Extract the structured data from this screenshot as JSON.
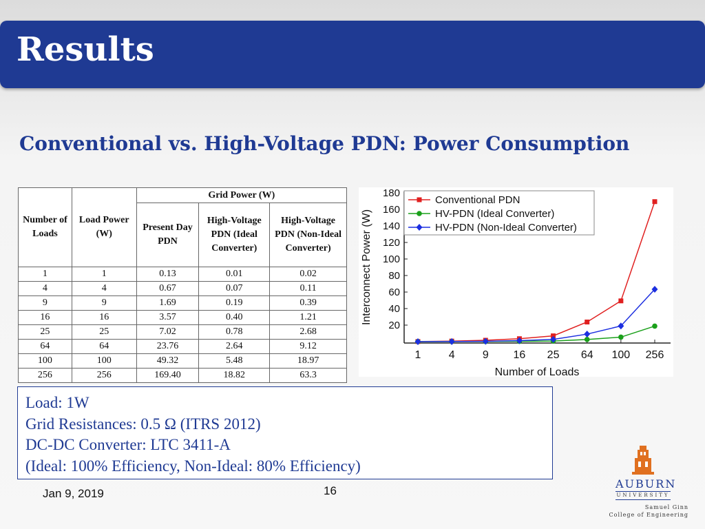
{
  "slide": {
    "title": "Results",
    "subtitle": "Conventional vs. High-Voltage PDN: Power Consumption",
    "date": "Jan 9, 2019",
    "page_number": "16"
  },
  "table": {
    "headers": {
      "number_of_loads": "Number of Loads",
      "load_power": "Load Power (W)",
      "grid_power": "Grid Power (W)",
      "present_day": "Present Day PDN",
      "hv_ideal": "High-Voltage PDN (Ideal Converter)",
      "hv_nonideal": "High-Voltage PDN (Non-Ideal Converter)"
    },
    "rows": [
      [
        "1",
        "1",
        "0.13",
        "0.01",
        "0.02"
      ],
      [
        "4",
        "4",
        "0.67",
        "0.07",
        "0.11"
      ],
      [
        "9",
        "9",
        "1.69",
        "0.19",
        "0.39"
      ],
      [
        "16",
        "16",
        "3.57",
        "0.40",
        "1.21"
      ],
      [
        "25",
        "25",
        "7.02",
        "0.78",
        "2.68"
      ],
      [
        "64",
        "64",
        "23.76",
        "2.64",
        "9.12"
      ],
      [
        "100",
        "100",
        "49.32",
        "5.48",
        "18.97"
      ],
      [
        "256",
        "256",
        "169.40",
        "18.82",
        "63.3"
      ]
    ]
  },
  "info": {
    "lines": [
      "Load: 1W",
      "Grid Resistances: 0.5 Ω (ITRS 2012)",
      "DC-DC Converter: LTC 3411-A",
      "(Ideal: 100% Efficiency, Non-Ideal: 80% Efficiency)"
    ]
  },
  "logo": {
    "name": "AUBURN",
    "subname": "UNIVERSITY",
    "line1": "Samuel Ginn",
    "line2": "College of Engineering"
  },
  "chart_data": {
    "type": "line",
    "categories": [
      "1",
      "4",
      "9",
      "16",
      "25",
      "64",
      "100",
      "256"
    ],
    "xlabel": "Number of Loads",
    "ylabel": "Interconnect Power (W)",
    "ylim": [
      0,
      180
    ],
    "yticks": [
      20,
      40,
      60,
      80,
      100,
      120,
      140,
      160,
      180
    ],
    "legend_position": "top-left",
    "series": [
      {
        "name": "Conventional PDN",
        "color": "#e02020",
        "marker": "square",
        "values": [
          0.13,
          0.67,
          1.69,
          3.57,
          7.02,
          23.76,
          49.32,
          169.4
        ]
      },
      {
        "name": "HV-PDN (Ideal Converter)",
        "color": "#1aa01a",
        "marker": "circle",
        "values": [
          0.01,
          0.07,
          0.19,
          0.4,
          0.78,
          2.64,
          5.48,
          18.82
        ]
      },
      {
        "name": "HV-PDN (Non-Ideal Converter)",
        "color": "#1c2fe0",
        "marker": "diamond",
        "values": [
          0.02,
          0.11,
          0.39,
          1.21,
          2.68,
          9.12,
          18.97,
          63.3
        ]
      }
    ]
  }
}
